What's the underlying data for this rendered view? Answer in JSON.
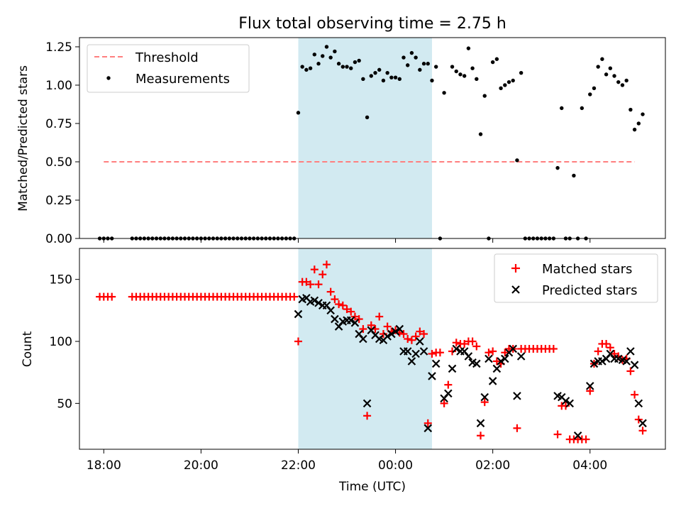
{
  "chart_data": {
    "type": "scatter",
    "title": "Flux total observing time = 2.75 h",
    "xlabel": "Time (UTC)",
    "x_unit": "hours",
    "x_range": [
      17.5,
      5.55
    ],
    "x_ticks": [
      {
        "v": 18,
        "label": "18:00"
      },
      {
        "v": 20,
        "label": "20:00"
      },
      {
        "v": 22,
        "label": "22:00"
      },
      {
        "v": 0,
        "label": "00:00"
      },
      {
        "v": 2,
        "label": "02:00"
      },
      {
        "v": 4,
        "label": "04:00"
      }
    ],
    "shaded_span": {
      "start": "22:00",
      "end": "00:45",
      "color": "#add8e6"
    },
    "colors": {
      "threshold": "#ff7f7f",
      "measurements": "#000000",
      "matched": "#ff0000",
      "predicted": "#000000",
      "shade": "#add8e6"
    },
    "top": {
      "ylabel": "Matched/Predicted stars",
      "ylim": [
        0,
        1.31
      ],
      "yticks": [
        "0.00",
        "0.25",
        "0.50",
        "0.75",
        "1.00",
        "1.25"
      ],
      "legend": {
        "position": "upper left",
        "threshold_label": "Threshold",
        "measurements_label": "Measurements"
      },
      "threshold": {
        "y": 0.5,
        "x_start": "18:00",
        "x_end": "04:55"
      },
      "measurements": [
        [
          "17:55",
          0
        ],
        [
          "18:00",
          0
        ],
        [
          "18:05",
          0
        ],
        [
          "18:10",
          0
        ],
        [
          "18:35",
          0
        ],
        [
          "18:40",
          0
        ],
        [
          "18:45",
          0
        ],
        [
          "18:50",
          0
        ],
        [
          "18:55",
          0
        ],
        [
          "19:00",
          0
        ],
        [
          "19:05",
          0
        ],
        [
          "19:10",
          0
        ],
        [
          "19:15",
          0
        ],
        [
          "19:20",
          0
        ],
        [
          "19:25",
          0
        ],
        [
          "19:30",
          0
        ],
        [
          "19:35",
          0
        ],
        [
          "19:40",
          0
        ],
        [
          "19:45",
          0
        ],
        [
          "19:50",
          0
        ],
        [
          "19:55",
          0
        ],
        [
          "20:00",
          0
        ],
        [
          "20:05",
          0
        ],
        [
          "20:10",
          0
        ],
        [
          "20:15",
          0
        ],
        [
          "20:20",
          0
        ],
        [
          "20:25",
          0
        ],
        [
          "20:30",
          0
        ],
        [
          "20:35",
          0
        ],
        [
          "20:40",
          0
        ],
        [
          "20:45",
          0
        ],
        [
          "20:50",
          0
        ],
        [
          "20:55",
          0
        ],
        [
          "21:00",
          0
        ],
        [
          "21:05",
          0
        ],
        [
          "21:10",
          0
        ],
        [
          "21:15",
          0
        ],
        [
          "21:20",
          0
        ],
        [
          "21:25",
          0
        ],
        [
          "21:30",
          0
        ],
        [
          "21:35",
          0
        ],
        [
          "21:40",
          0
        ],
        [
          "21:45",
          0
        ],
        [
          "21:50",
          0
        ],
        [
          "21:55",
          0
        ],
        [
          "22:00",
          0.82
        ],
        [
          "22:05",
          1.12
        ],
        [
          "22:10",
          1.1
        ],
        [
          "22:15",
          1.11
        ],
        [
          "22:20",
          1.2
        ],
        [
          "22:25",
          1.14
        ],
        [
          "22:30",
          1.19
        ],
        [
          "22:35",
          1.25
        ],
        [
          "22:40",
          1.18
        ],
        [
          "22:45",
          1.22
        ],
        [
          "22:50",
          1.14
        ],
        [
          "22:55",
          1.12
        ],
        [
          "23:00",
          1.12
        ],
        [
          "23:05",
          1.11
        ],
        [
          "23:10",
          1.15
        ],
        [
          "23:15",
          1.16
        ],
        [
          "23:20",
          1.04
        ],
        [
          "23:25",
          0.79
        ],
        [
          "23:30",
          1.06
        ],
        [
          "23:35",
          1.08
        ],
        [
          "23:40",
          1.1
        ],
        [
          "23:45",
          1.03
        ],
        [
          "23:50",
          1.08
        ],
        [
          "23:55",
          1.05
        ],
        [
          "00:00",
          1.05
        ],
        [
          "00:05",
          1.04
        ],
        [
          "00:10",
          1.18
        ],
        [
          "00:15",
          1.13
        ],
        [
          "00:20",
          1.21
        ],
        [
          "00:25",
          1.18
        ],
        [
          "00:30",
          1.1
        ],
        [
          "00:35",
          1.14
        ],
        [
          "00:40",
          1.14
        ],
        [
          "00:45",
          1.03
        ],
        [
          "00:50",
          1.12
        ],
        [
          "00:55",
          0
        ],
        [
          "01:00",
          0.95
        ],
        [
          "01:10",
          1.12
        ],
        [
          "01:15",
          1.09
        ],
        [
          "01:20",
          1.07
        ],
        [
          "01:25",
          1.06
        ],
        [
          "01:30",
          1.24
        ],
        [
          "01:35",
          1.11
        ],
        [
          "01:40",
          1.04
        ],
        [
          "01:45",
          0.68
        ],
        [
          "01:50",
          0.93
        ],
        [
          "01:55",
          0
        ],
        [
          "02:00",
          1.15
        ],
        [
          "02:05",
          1.17
        ],
        [
          "02:10",
          0.98
        ],
        [
          "02:15",
          1.0
        ],
        [
          "02:20",
          1.02
        ],
        [
          "02:25",
          1.03
        ],
        [
          "02:30",
          0.51
        ],
        [
          "02:35",
          1.08
        ],
        [
          "02:40",
          0
        ],
        [
          "02:45",
          0
        ],
        [
          "02:50",
          0
        ],
        [
          "02:55",
          0
        ],
        [
          "03:00",
          0
        ],
        [
          "03:05",
          0
        ],
        [
          "03:10",
          0
        ],
        [
          "03:15",
          0
        ],
        [
          "03:20",
          0.46
        ],
        [
          "03:25",
          0.85
        ],
        [
          "03:30",
          0
        ],
        [
          "03:35",
          0
        ],
        [
          "03:40",
          0.41
        ],
        [
          "03:45",
          0
        ],
        [
          "03:50",
          0.85
        ],
        [
          "03:55",
          0
        ],
        [
          "04:00",
          0.94
        ],
        [
          "04:05",
          0.98
        ],
        [
          "04:10",
          1.12
        ],
        [
          "04:15",
          1.17
        ],
        [
          "04:20",
          1.07
        ],
        [
          "04:25",
          1.11
        ],
        [
          "04:30",
          1.06
        ],
        [
          "04:35",
          1.02
        ],
        [
          "04:40",
          1.0
        ],
        [
          "04:45",
          1.03
        ],
        [
          "04:50",
          0.84
        ],
        [
          "04:55",
          0.71
        ],
        [
          "05:00",
          0.75
        ],
        [
          "05:05",
          0.81
        ]
      ]
    },
    "bottom": {
      "ylabel": "Count",
      "ylim": [
        13,
        175
      ],
      "yticks": [
        "50",
        "100",
        "150"
      ],
      "legend": {
        "position": "upper right",
        "matched_label": "Matched stars",
        "predicted_label": "Predicted stars"
      },
      "matched": [
        [
          "17:55",
          136
        ],
        [
          "18:00",
          136
        ],
        [
          "18:05",
          136
        ],
        [
          "18:10",
          136
        ],
        [
          "18:35",
          136
        ],
        [
          "18:40",
          136
        ],
        [
          "18:45",
          136
        ],
        [
          "18:50",
          136
        ],
        [
          "18:55",
          136
        ],
        [
          "19:00",
          136
        ],
        [
          "19:05",
          136
        ],
        [
          "19:10",
          136
        ],
        [
          "19:15",
          136
        ],
        [
          "19:20",
          136
        ],
        [
          "19:25",
          136
        ],
        [
          "19:30",
          136
        ],
        [
          "19:35",
          136
        ],
        [
          "19:40",
          136
        ],
        [
          "19:45",
          136
        ],
        [
          "19:50",
          136
        ],
        [
          "19:55",
          136
        ],
        [
          "20:00",
          136
        ],
        [
          "20:05",
          136
        ],
        [
          "20:10",
          136
        ],
        [
          "20:15",
          136
        ],
        [
          "20:20",
          136
        ],
        [
          "20:25",
          136
        ],
        [
          "20:30",
          136
        ],
        [
          "20:35",
          136
        ],
        [
          "20:40",
          136
        ],
        [
          "20:45",
          136
        ],
        [
          "20:50",
          136
        ],
        [
          "20:55",
          136
        ],
        [
          "21:00",
          136
        ],
        [
          "21:05",
          136
        ],
        [
          "21:10",
          136
        ],
        [
          "21:15",
          136
        ],
        [
          "21:20",
          136
        ],
        [
          "21:25",
          136
        ],
        [
          "21:30",
          136
        ],
        [
          "21:35",
          136
        ],
        [
          "21:40",
          136
        ],
        [
          "21:45",
          136
        ],
        [
          "21:50",
          136
        ],
        [
          "21:55",
          136
        ],
        [
          "22:00",
          100
        ],
        [
          "22:05",
          148
        ],
        [
          "22:10",
          148
        ],
        [
          "22:15",
          146
        ],
        [
          "22:20",
          158
        ],
        [
          "22:25",
          146
        ],
        [
          "22:30",
          154
        ],
        [
          "22:35",
          162
        ],
        [
          "22:40",
          140
        ],
        [
          "22:45",
          134
        ],
        [
          "22:50",
          130
        ],
        [
          "22:55",
          129
        ],
        [
          "23:00",
          126
        ],
        [
          "23:05",
          124
        ],
        [
          "23:10",
          120
        ],
        [
          "23:15",
          118
        ],
        [
          "23:20",
          110
        ],
        [
          "23:25",
          40
        ],
        [
          "23:30",
          113
        ],
        [
          "23:35",
          110
        ],
        [
          "23:40",
          120
        ],
        [
          "23:45",
          106
        ],
        [
          "23:50",
          112
        ],
        [
          "23:55",
          108
        ],
        [
          "00:00",
          109
        ],
        [
          "00:05",
          107
        ],
        [
          "00:10",
          106
        ],
        [
          "00:15",
          102
        ],
        [
          "00:20",
          101
        ],
        [
          "00:25",
          104
        ],
        [
          "00:30",
          108
        ],
        [
          "00:35",
          106
        ],
        [
          "00:40",
          34
        ],
        [
          "00:45",
          90
        ],
        [
          "00:50",
          91
        ],
        [
          "00:55",
          91
        ],
        [
          "01:00",
          50
        ],
        [
          "01:05",
          65
        ],
        [
          "01:10",
          92
        ],
        [
          "01:15",
          99
        ],
        [
          "01:20",
          98
        ],
        [
          "01:25",
          98
        ],
        [
          "01:30",
          100
        ],
        [
          "01:35",
          100
        ],
        [
          "01:40",
          96
        ],
        [
          "01:45",
          24
        ],
        [
          "01:50",
          51
        ],
        [
          "01:55",
          91
        ],
        [
          "02:00",
          92
        ],
        [
          "02:05",
          84
        ],
        [
          "02:10",
          82
        ],
        [
          "02:15",
          91
        ],
        [
          "02:20",
          94
        ],
        [
          "02:25",
          94
        ],
        [
          "02:30",
          30
        ],
        [
          "02:35",
          94
        ],
        [
          "02:40",
          94
        ],
        [
          "02:45",
          94
        ],
        [
          "02:50",
          94
        ],
        [
          "02:55",
          94
        ],
        [
          "03:00",
          94
        ],
        [
          "03:05",
          94
        ],
        [
          "03:10",
          94
        ],
        [
          "03:15",
          94
        ],
        [
          "03:20",
          25
        ],
        [
          "03:25",
          48
        ],
        [
          "03:30",
          48
        ],
        [
          "03:35",
          21
        ],
        [
          "03:40",
          21
        ],
        [
          "03:45",
          21
        ],
        [
          "03:50",
          21
        ],
        [
          "03:55",
          21
        ],
        [
          "04:00",
          60
        ],
        [
          "04:05",
          82
        ],
        [
          "04:10",
          92
        ],
        [
          "04:15",
          98
        ],
        [
          "04:20",
          98
        ],
        [
          "04:25",
          95
        ],
        [
          "04:30",
          90
        ],
        [
          "04:35",
          88
        ],
        [
          "04:40",
          85
        ],
        [
          "04:45",
          86
        ],
        [
          "04:50",
          76
        ],
        [
          "04:55",
          57
        ],
        [
          "05:00",
          37
        ],
        [
          "05:05",
          28
        ]
      ],
      "predicted": [
        [
          "22:00",
          122
        ],
        [
          "22:05",
          134
        ],
        [
          "22:10",
          135
        ],
        [
          "22:15",
          132
        ],
        [
          "22:20",
          133
        ],
        [
          "22:25",
          131
        ],
        [
          "22:30",
          129
        ],
        [
          "22:35",
          129
        ],
        [
          "22:40",
          125
        ],
        [
          "22:45",
          118
        ],
        [
          "22:50",
          112
        ],
        [
          "22:55",
          116
        ],
        [
          "23:00",
          117
        ],
        [
          "23:05",
          117
        ],
        [
          "23:10",
          115
        ],
        [
          "23:15",
          106
        ],
        [
          "23:20",
          102
        ],
        [
          "23:25",
          50
        ],
        [
          "23:30",
          109
        ],
        [
          "23:35",
          105
        ],
        [
          "23:40",
          102
        ],
        [
          "23:45",
          101
        ],
        [
          "23:50",
          104
        ],
        [
          "23:55",
          106
        ],
        [
          "00:00",
          108
        ],
        [
          "00:05",
          110
        ],
        [
          "00:10",
          92
        ],
        [
          "00:15",
          92
        ],
        [
          "00:20",
          84
        ],
        [
          "00:25",
          90
        ],
        [
          "00:30",
          100
        ],
        [
          "00:35",
          92
        ],
        [
          "00:40",
          30
        ],
        [
          "00:45",
          72
        ],
        [
          "00:50",
          82
        ],
        [
          "01:00",
          54
        ],
        [
          "01:05",
          58
        ],
        [
          "01:10",
          78
        ],
        [
          "01:15",
          94
        ],
        [
          "01:20",
          92
        ],
        [
          "01:25",
          92
        ],
        [
          "01:30",
          88
        ],
        [
          "01:35",
          83
        ],
        [
          "01:40",
          82
        ],
        [
          "01:45",
          34
        ],
        [
          "01:50",
          55
        ],
        [
          "01:55",
          86
        ],
        [
          "02:00",
          68
        ],
        [
          "02:05",
          78
        ],
        [
          "02:10",
          84
        ],
        [
          "02:15",
          86
        ],
        [
          "02:20",
          91
        ],
        [
          "02:25",
          94
        ],
        [
          "02:30",
          56
        ],
        [
          "02:35",
          88
        ],
        [
          "03:20",
          56
        ],
        [
          "03:25",
          55
        ],
        [
          "03:30",
          52
        ],
        [
          "03:35",
          50
        ],
        [
          "03:45",
          24
        ],
        [
          "04:00",
          64
        ],
        [
          "04:05",
          82
        ],
        [
          "04:10",
          84
        ],
        [
          "04:15",
          84
        ],
        [
          "04:20",
          86
        ],
        [
          "04:25",
          90
        ],
        [
          "04:30",
          86
        ],
        [
          "04:35",
          86
        ],
        [
          "04:40",
          85
        ],
        [
          "04:45",
          84
        ],
        [
          "04:50",
          92
        ],
        [
          "04:55",
          81
        ],
        [
          "05:00",
          50
        ],
        [
          "05:05",
          34
        ]
      ]
    }
  }
}
